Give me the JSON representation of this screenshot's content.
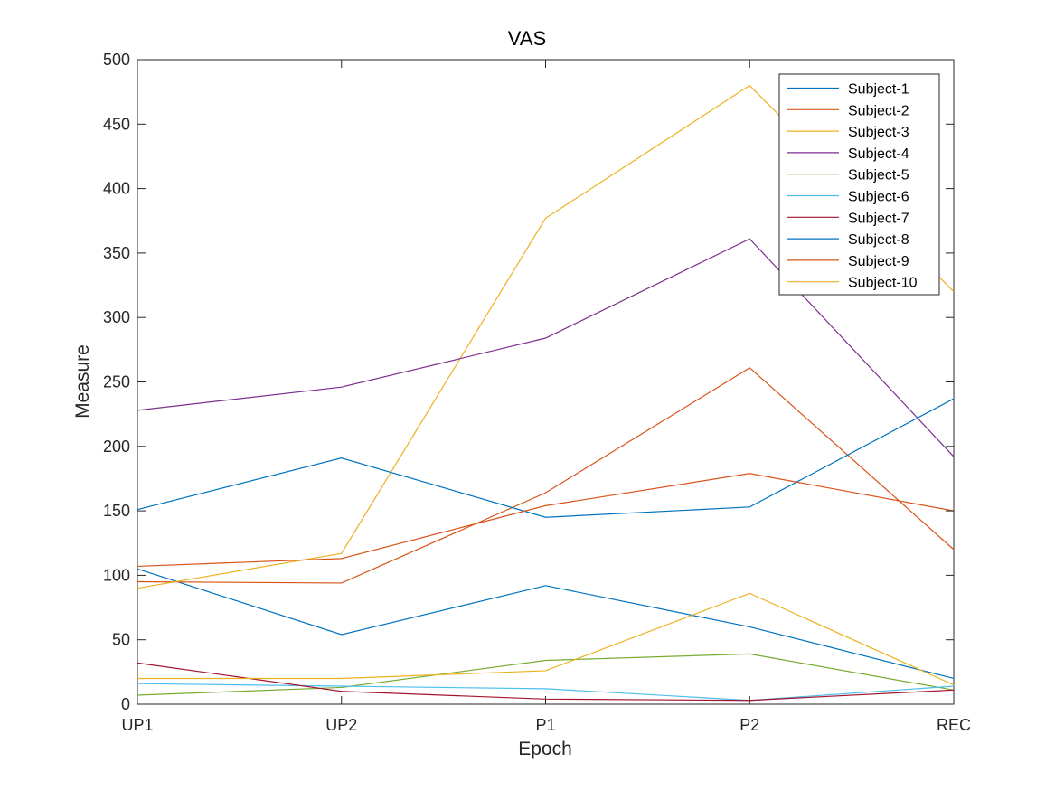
{
  "chart_data": {
    "type": "line",
    "title": "VAS",
    "xlabel": "Epoch",
    "ylabel": "Measure",
    "categories": [
      "UP1",
      "UP2",
      "P1",
      "P2",
      "REC"
    ],
    "ylim": [
      0,
      500
    ],
    "yticks": [
      0,
      50,
      100,
      150,
      200,
      250,
      300,
      350,
      400,
      450,
      500
    ],
    "grid": false,
    "legend_position": "top-right",
    "series": [
      {
        "name": "Subject-1",
        "color": "#0072BD",
        "values": [
          105,
          54,
          92,
          60,
          20
        ]
      },
      {
        "name": "Subject-2",
        "color": "#D95319",
        "values": [
          95,
          94,
          164,
          261,
          120
        ]
      },
      {
        "name": "Subject-3",
        "color": "#EDB120",
        "values": [
          90,
          117,
          377,
          480,
          320
        ]
      },
      {
        "name": "Subject-4",
        "color": "#7E2F8E",
        "values": [
          228,
          246,
          284,
          361,
          192
        ]
      },
      {
        "name": "Subject-5",
        "color": "#77AC30",
        "values": [
          7,
          13,
          34,
          39,
          11
        ]
      },
      {
        "name": "Subject-6",
        "color": "#4DBEEE",
        "values": [
          16,
          14,
          12,
          3,
          14
        ]
      },
      {
        "name": "Subject-7",
        "color": "#A2142F",
        "values": [
          32,
          10,
          4,
          3,
          11
        ]
      },
      {
        "name": "Subject-8",
        "color": "#0072BD",
        "values": [
          151,
          191,
          145,
          153,
          237
        ]
      },
      {
        "name": "Subject-9",
        "color": "#D95319",
        "values": [
          107,
          113,
          154,
          179,
          150
        ]
      },
      {
        "name": "Subject-10",
        "color": "#EDB120",
        "values": [
          20,
          20,
          26,
          86,
          15
        ]
      }
    ]
  }
}
